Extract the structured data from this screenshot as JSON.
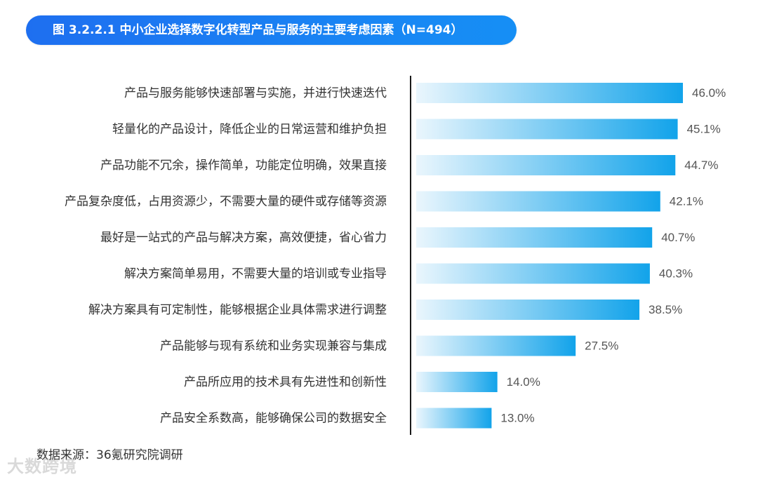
{
  "header": {
    "title": "图 3.2.2.1 中小企业选择数字化转型产品与服务的主要考虑因素（N=494）"
  },
  "chart_data": {
    "type": "bar",
    "orientation": "horizontal",
    "categories": [
      "产品与服务能够快速部署与实施，并进行快速迭代",
      "轻量化的产品设计，降低企业的日常运营和维护负担",
      "产品功能不冗余，操作简单，功能定位明确，效果直接",
      "产品复杂度低，占用资源少，不需要大量的硬件或存储等资源",
      "最好是一站式的产品与解决方案，高效便捷，省心省力",
      "解决方案简单易用，不需要大量的培训或专业指导",
      "解决方案具有可定制性，能够根据企业具体需求进行调整",
      "产品能够与现有系统和业务实现兼容与集成",
      "产品所应用的技术具有先进性和创新性",
      "产品安全系数高，能够确保公司的数据安全"
    ],
    "values": [
      46.0,
      45.1,
      44.7,
      42.1,
      40.7,
      40.3,
      38.5,
      27.5,
      14.0,
      13.0
    ],
    "value_labels": [
      "46.0%",
      "45.1%",
      "44.7%",
      "42.1%",
      "40.7%",
      "40.3%",
      "38.5%",
      "27.5%",
      "14.0%",
      "13.0%"
    ],
    "colors": {
      "bar_start": "#eaf6fd",
      "bar_end": "#12a3ea",
      "axis": "#1a1a1a",
      "label_text": "#333333",
      "value_text": "#555555"
    },
    "grid": false,
    "legend": "none"
  },
  "footer": {
    "source": "数据来源：36氪研究院调研",
    "watermark": "大数跨境"
  }
}
